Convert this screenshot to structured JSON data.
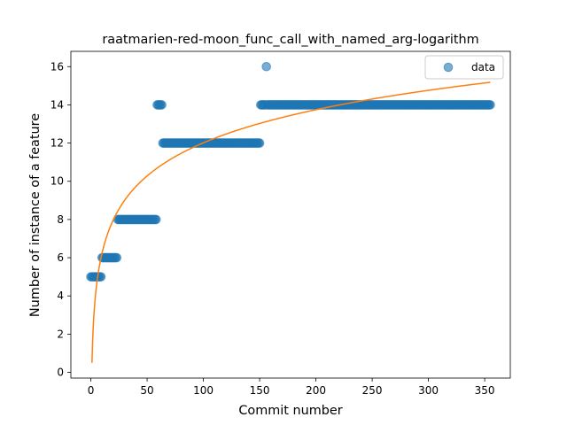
{
  "chart_data": {
    "type": "scatter",
    "title": "raatmarien-red-moon_func_call_with_named_arg-logarithm",
    "xlabel": "Commit number",
    "ylabel": "Number of instance of a feature",
    "xlim": [
      -17.75,
      372.75
    ],
    "ylim": [
      -0.3,
      16.8
    ],
    "xticks": [
      0,
      50,
      100,
      150,
      200,
      250,
      300,
      350
    ],
    "yticks": [
      0,
      2,
      4,
      6,
      8,
      10,
      12,
      14,
      16
    ],
    "legend": {
      "position": "top-right",
      "entries": [
        "data"
      ]
    },
    "colors": {
      "scatter": "#1f77b4",
      "fit": "#ff7f0e"
    },
    "scatter_segments": [
      {
        "x_start": 0,
        "x_end": 9,
        "y": 5
      },
      {
        "x_start": 10,
        "x_end": 23,
        "y": 6
      },
      {
        "x_start": 24,
        "x_end": 58,
        "y": 8
      },
      {
        "x_start": 59,
        "x_end": 63,
        "y": 14
      },
      {
        "x_start": 64,
        "x_end": 150,
        "y": 12
      },
      {
        "x_start": 151,
        "x_end": 155,
        "y": 14
      },
      {
        "x_start": 156,
        "x_end": 156,
        "y": 16
      },
      {
        "x_start": 157,
        "x_end": 355,
        "y": 14
      }
    ],
    "fit": {
      "type": "logarithmic",
      "a": 0.5,
      "b": 2.5,
      "x_start": 1,
      "x_end": 355
    }
  }
}
